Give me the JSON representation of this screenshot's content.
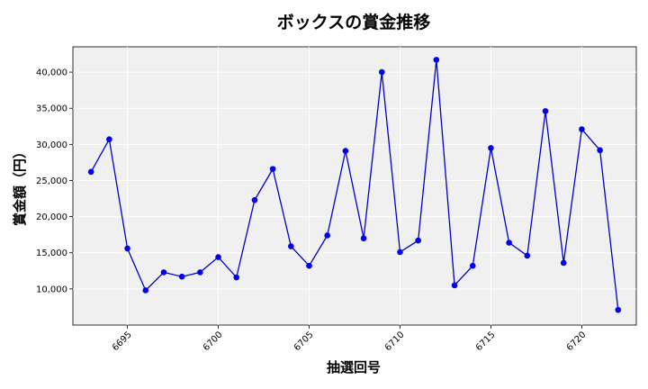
{
  "chart_data": {
    "type": "line",
    "title": "ボックスの賞金推移",
    "xlabel": "抽選回号",
    "ylabel": "賞金額（円）",
    "xlim": [
      6692,
      6723
    ],
    "ylim": [
      5000,
      43500
    ],
    "xticks": [
      6695,
      6700,
      6705,
      6710,
      6715,
      6720
    ],
    "yticks": [
      10000,
      15000,
      20000,
      25000,
      30000,
      35000,
      40000
    ],
    "ytick_labels": [
      "10,000",
      "15,000",
      "20,000",
      "25,000",
      "30,000",
      "35,000",
      "40,000"
    ],
    "grid": true,
    "line_color": "#0000cc",
    "marker_color": "#0000ee",
    "plot_background": "#f0f0f0",
    "x": [
      6693,
      6694,
      6695,
      6696,
      6697,
      6698,
      6699,
      6700,
      6701,
      6702,
      6703,
      6704,
      6705,
      6706,
      6707,
      6708,
      6709,
      6710,
      6711,
      6712,
      6713,
      6714,
      6715,
      6716,
      6717,
      6718,
      6719,
      6720,
      6721,
      6722
    ],
    "y": [
      26200,
      30700,
      15600,
      9800,
      12300,
      11700,
      12300,
      14400,
      11600,
      22300,
      26600,
      15900,
      13200,
      17400,
      29100,
      17000,
      40000,
      15100,
      16700,
      41700,
      10500,
      13200,
      29500,
      16400,
      14600,
      34600,
      13600,
      32100,
      29200,
      7100
    ]
  }
}
